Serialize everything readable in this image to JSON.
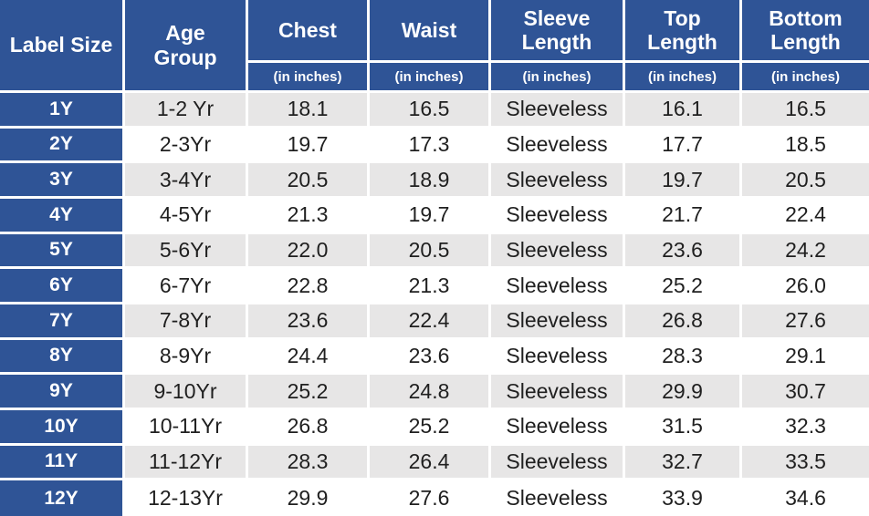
{
  "colors": {
    "header_bg": "#2F5496",
    "row_label_bg": "#2F5496",
    "alt_row_bg": "#E7E6E6",
    "row_bg": "#FFFFFF",
    "header_text": "#FFFFFF",
    "body_text": "#1F1F1F"
  },
  "table": {
    "columns": [
      {
        "key": "label_size",
        "label": "Label Size",
        "sub": ""
      },
      {
        "key": "age_group",
        "label": "Age Group",
        "sub": ""
      },
      {
        "key": "chest",
        "label": "Chest",
        "sub": "(in inches)"
      },
      {
        "key": "waist",
        "label": "Waist",
        "sub": "(in inches)"
      },
      {
        "key": "sleeve_length",
        "label": "Sleeve Length",
        "sub": "(in inches)"
      },
      {
        "key": "top_length",
        "label": "Top Length",
        "sub": "(in inches)"
      },
      {
        "key": "bottom_length",
        "label": "Bottom Length",
        "sub": "(in inches)"
      }
    ],
    "rows": [
      {
        "label_size": "1Y",
        "age_group": "1-2 Yr",
        "chest": "18.1",
        "waist": "16.5",
        "sleeve_length": "Sleeveless",
        "top_length": "16.1",
        "bottom_length": "16.5"
      },
      {
        "label_size": "2Y",
        "age_group": "2-3Yr",
        "chest": "19.7",
        "waist": "17.3",
        "sleeve_length": "Sleeveless",
        "top_length": "17.7",
        "bottom_length": "18.5"
      },
      {
        "label_size": "3Y",
        "age_group": "3-4Yr",
        "chest": "20.5",
        "waist": "18.9",
        "sleeve_length": "Sleeveless",
        "top_length": "19.7",
        "bottom_length": "20.5"
      },
      {
        "label_size": "4Y",
        "age_group": "4-5Yr",
        "chest": "21.3",
        "waist": "19.7",
        "sleeve_length": "Sleeveless",
        "top_length": "21.7",
        "bottom_length": "22.4"
      },
      {
        "label_size": "5Y",
        "age_group": "5-6Yr",
        "chest": "22.0",
        "waist": "20.5",
        "sleeve_length": "Sleeveless",
        "top_length": "23.6",
        "bottom_length": "24.2"
      },
      {
        "label_size": "6Y",
        "age_group": "6-7Yr",
        "chest": "22.8",
        "waist": "21.3",
        "sleeve_length": "Sleeveless",
        "top_length": "25.2",
        "bottom_length": "26.0"
      },
      {
        "label_size": "7Y",
        "age_group": "7-8Yr",
        "chest": "23.6",
        "waist": "22.4",
        "sleeve_length": "Sleeveless",
        "top_length": "26.8",
        "bottom_length": "27.6"
      },
      {
        "label_size": "8Y",
        "age_group": "8-9Yr",
        "chest": "24.4",
        "waist": "23.6",
        "sleeve_length": "Sleeveless",
        "top_length": "28.3",
        "bottom_length": "29.1"
      },
      {
        "label_size": "9Y",
        "age_group": "9-10Yr",
        "chest": "25.2",
        "waist": "24.8",
        "sleeve_length": "Sleeveless",
        "top_length": "29.9",
        "bottom_length": "30.7"
      },
      {
        "label_size": "10Y",
        "age_group": "10-11Yr",
        "chest": "26.8",
        "waist": "25.2",
        "sleeve_length": "Sleeveless",
        "top_length": "31.5",
        "bottom_length": "32.3"
      },
      {
        "label_size": "11Y",
        "age_group": "11-12Yr",
        "chest": "28.3",
        "waist": "26.4",
        "sleeve_length": "Sleeveless",
        "top_length": "32.7",
        "bottom_length": "33.5"
      },
      {
        "label_size": "12Y",
        "age_group": "12-13Yr",
        "chest": "29.9",
        "waist": "27.6",
        "sleeve_length": "Sleeveless",
        "top_length": "33.9",
        "bottom_length": "34.6"
      }
    ]
  }
}
